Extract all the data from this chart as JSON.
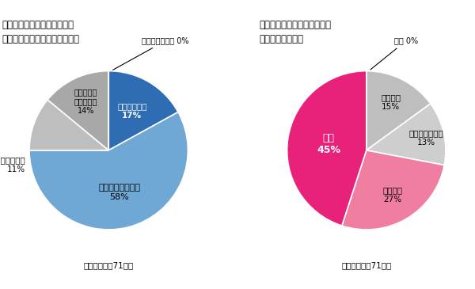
{
  "left_title": "日本の上場会社の英文開示は\n近年改善していると思いますか",
  "left_labels_inner": [
    [
      "改善している",
      "17%"
    ],
    [
      "やや改善している",
      "58%"
    ],
    null,
    null,
    null
  ],
  "left_labels_outer": [
    null,
    null,
    [
      "どちらでもない",
      "11%"
    ],
    [
      "あまり改善",
      "していない",
      "14%"
    ],
    [
      "改善していない 0%",
      null
    ]
  ],
  "left_values": [
    17,
    58,
    11,
    14,
    0
  ],
  "left_colors": [
    "#2E6DB4",
    "#6FA8D4",
    "#BEBEBE",
    "#A8A8A8",
    "#EBEBEB"
  ],
  "left_caption": "機関投資家（71件）",
  "right_title": "日本の上場会社の英文開示に\n満足していますか",
  "right_labels_inner": [
    null,
    null,
    null,
    [
      "やや不満",
      "27%"
    ],
    [
      "不満",
      "45%"
    ]
  ],
  "right_labels_outer": [
    [
      "満足 0%",
      null
    ],
    [
      "やや満足",
      "15%"
    ],
    [
      "どちらでもない",
      "13%"
    ],
    null,
    null
  ],
  "right_values": [
    0,
    15,
    13,
    27,
    45
  ],
  "right_colors": [
    "#EBEBEB",
    "#BEBEBE",
    "#CECECE",
    "#F07EA0",
    "#E8217A"
  ],
  "right_caption": "機関投資家（71件）",
  "bg_color": "#FFFFFF"
}
